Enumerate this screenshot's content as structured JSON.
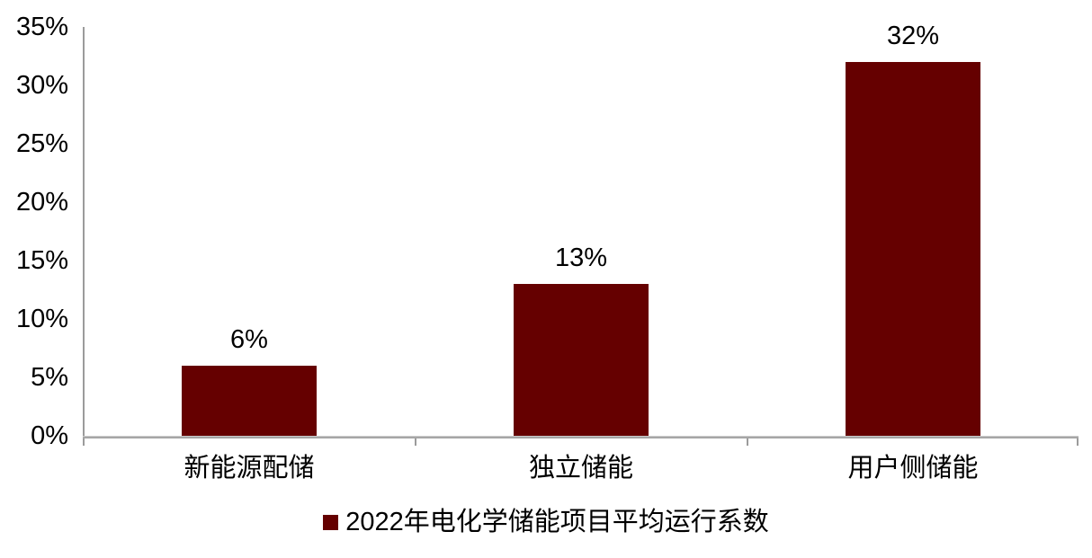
{
  "chart_data": {
    "type": "bar",
    "title": "",
    "xlabel": "",
    "ylabel": "",
    "categories": [
      "新能源配储",
      "独立储能",
      "用户侧储能"
    ],
    "values": [
      6,
      13,
      32
    ],
    "value_labels": [
      "6%",
      "13%",
      "32%"
    ],
    "series_name": "2022年电化学储能项目平均运行系数",
    "ylim": [
      0,
      35
    ],
    "ytick_step": 5,
    "ytick_labels": [
      "0%",
      "5%",
      "10%",
      "15%",
      "20%",
      "25%",
      "30%",
      "35%"
    ],
    "grid": false,
    "legend_position": "bottom",
    "bar_color": "#650000"
  },
  "legend": {
    "label": "2022年电化学储能项目平均运行系数",
    "marker": "square"
  },
  "colors": {
    "bar": "#650000",
    "axis": "#9b9b9b",
    "text": "#000000",
    "background": "#ffffff"
  }
}
